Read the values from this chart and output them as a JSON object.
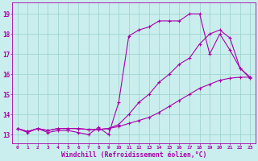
{
  "xlabel": "Windchill (Refroidissement éolien,°C)",
  "bg_color": "#caeeed",
  "line_color": "#aa00aa",
  "grid_color": "#9ed4d0",
  "xlim_min": -0.5,
  "xlim_max": 23.5,
  "ylim_min": 12.55,
  "ylim_max": 19.55,
  "xticks": [
    0,
    1,
    2,
    3,
    4,
    5,
    6,
    7,
    8,
    9,
    10,
    11,
    12,
    13,
    14,
    15,
    16,
    17,
    18,
    19,
    20,
    21,
    22,
    23
  ],
  "yticks": [
    13,
    14,
    15,
    16,
    17,
    18,
    19
  ],
  "line1_x": [
    0,
    1,
    2,
    3,
    4,
    5,
    6,
    7,
    8,
    9,
    10,
    11,
    12,
    13,
    14,
    15,
    16,
    17,
    18,
    19,
    20,
    21,
    22,
    23
  ],
  "line1_y": [
    13.3,
    13.1,
    13.3,
    13.1,
    13.2,
    13.2,
    13.1,
    13.0,
    13.35,
    13.0,
    14.6,
    17.9,
    18.2,
    18.35,
    18.65,
    18.65,
    18.65,
    19.0,
    19.0,
    17.0,
    18.0,
    17.2,
    16.3,
    15.8
  ],
  "line2_x": [
    0,
    1,
    2,
    3,
    4,
    5,
    6,
    7,
    8,
    9,
    10,
    11,
    12,
    13,
    14,
    15,
    16,
    17,
    18,
    19,
    20,
    21,
    22,
    23
  ],
  "line2_y": [
    13.3,
    13.15,
    13.3,
    13.2,
    13.3,
    13.3,
    13.3,
    13.25,
    13.25,
    13.3,
    13.5,
    14.0,
    14.6,
    15.0,
    15.6,
    16.0,
    16.5,
    16.8,
    17.5,
    18.0,
    18.2,
    17.8,
    16.3,
    15.85
  ],
  "line3_x": [
    0,
    1,
    2,
    3,
    4,
    5,
    6,
    7,
    8,
    9,
    10,
    11,
    12,
    13,
    14,
    15,
    16,
    17,
    18,
    19,
    20,
    21,
    22,
    23
  ],
  "line3_y": [
    13.3,
    13.15,
    13.3,
    13.2,
    13.3,
    13.3,
    13.3,
    13.25,
    13.25,
    13.3,
    13.4,
    13.55,
    13.7,
    13.85,
    14.1,
    14.4,
    14.7,
    15.0,
    15.3,
    15.5,
    15.7,
    15.8,
    15.85,
    15.85
  ]
}
